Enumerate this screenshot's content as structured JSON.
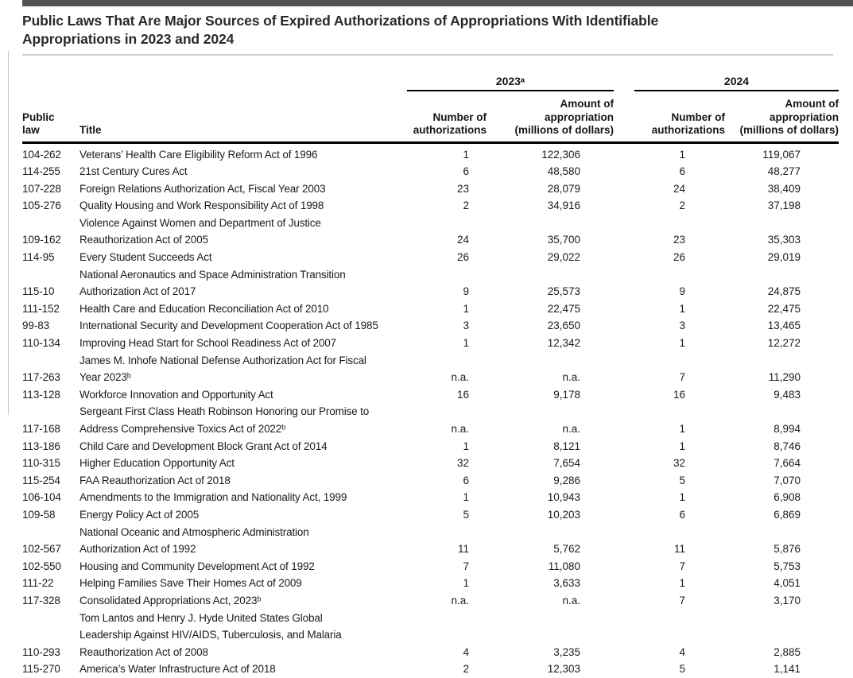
{
  "page": {
    "title": "Public Laws That Are Major Sources of Expired Authorizations of Appropriations With Identifiable\nAppropriations in 2023 and 2024"
  },
  "colors": {
    "top_bar": "#525355",
    "title_text": "#292a2e",
    "rule_black": "#000000",
    "divider_gray": "#cbcdcf"
  },
  "table": {
    "group_headers": {
      "year_2023": "2023ᵃ",
      "year_2024": "2024"
    },
    "column_headers": {
      "public_law": "Public\nlaw",
      "title": "Title",
      "number_of_authorizations_2023": "Number of\nauthorizations",
      "amount_of_appropriation_2023": "Amount of\nappropriation\n(millions of dollars)",
      "number_of_authorizations_2024": "Number of\nauthorizations",
      "amount_of_appropriation_2024": "Amount of\nappropriation\n(millions of dollars)"
    },
    "rows": [
      {
        "law": "104-262",
        "title": "Veterans’ Health Care Eligibility Reform Act of 1996",
        "auth_2023": "1",
        "amt_2023": "122,306",
        "auth_2024": "1",
        "amt_2024": "119,067"
      },
      {
        "law": "114-255",
        "title": "21st Century Cures Act",
        "auth_2023": "6",
        "amt_2023": "48,580",
        "auth_2024": "6",
        "amt_2024": "48,277"
      },
      {
        "law": "107-228",
        "title": "Foreign Relations Authorization Act, Fiscal Year 2003",
        "auth_2023": "23",
        "amt_2023": "28,079",
        "auth_2024": "24",
        "amt_2024": "38,409"
      },
      {
        "law": "105-276",
        "title": "Quality Housing and Work Responsibility Act of 1998",
        "auth_2023": "2",
        "amt_2023": "34,916",
        "auth_2024": "2",
        "amt_2024": "37,198"
      },
      {
        "law": "109-162",
        "title": "Violence Against Women and Department of Justice\nReauthorization Act of 2005",
        "auth_2023": "24",
        "amt_2023": "35,700",
        "auth_2024": "23",
        "amt_2024": "35,303"
      },
      {
        "law": "114-95",
        "title": "Every Student Succeeds Act",
        "auth_2023": "26",
        "amt_2023": "29,022",
        "auth_2024": "26",
        "amt_2024": "29,019"
      },
      {
        "law": "115-10",
        "title": "National Aeronautics and Space Administration Transition\nAuthorization Act of 2017",
        "auth_2023": "9",
        "amt_2023": "25,573",
        "auth_2024": "9",
        "amt_2024": "24,875"
      },
      {
        "law": "111-152",
        "title": "Health Care and Education Reconciliation Act of 2010",
        "auth_2023": "1",
        "amt_2023": "22,475",
        "auth_2024": "1",
        "amt_2024": "22,475"
      },
      {
        "law": "99-83",
        "title": "International Security and Development Cooperation Act of 1985",
        "auth_2023": "3",
        "amt_2023": "23,650",
        "auth_2024": "3",
        "amt_2024": "13,465"
      },
      {
        "law": "110-134",
        "title": "Improving Head Start for School Readiness Act of 2007",
        "auth_2023": "1",
        "amt_2023": "12,342",
        "auth_2024": "1",
        "amt_2024": "12,272"
      },
      {
        "law": "117-263",
        "title": "James M. Inhofe National Defense Authorization Act for Fiscal\nYear 2023ᵇ",
        "auth_2023": "n.a.",
        "amt_2023": "n.a.",
        "auth_2024": "7",
        "amt_2024": "11,290"
      },
      {
        "law": "113-128",
        "title": "Workforce Innovation and Opportunity Act",
        "auth_2023": "16",
        "amt_2023": "9,178",
        "auth_2024": "16",
        "amt_2024": "9,483"
      },
      {
        "law": "117-168",
        "title": "Sergeant First Class Heath Robinson Honoring our Promise to\nAddress Comprehensive Toxics Act of 2022ᵇ",
        "auth_2023": "n.a.",
        "amt_2023": "n.a.",
        "auth_2024": "1",
        "amt_2024": "8,994"
      },
      {
        "law": "113-186",
        "title": "Child Care and Development Block Grant Act of 2014",
        "auth_2023": "1",
        "amt_2023": "8,121",
        "auth_2024": "1",
        "amt_2024": "8,746"
      },
      {
        "law": "110-315",
        "title": "Higher Education Opportunity Act",
        "auth_2023": "32",
        "amt_2023": "7,654",
        "auth_2024": "32",
        "amt_2024": "7,664"
      },
      {
        "law": "115-254",
        "title": "FAA Reauthorization Act of 2018",
        "auth_2023": "6",
        "amt_2023": "9,286",
        "auth_2024": "5",
        "amt_2024": "7,070"
      },
      {
        "law": "106-104",
        "title": "Amendments to the Immigration and Nationality Act, 1999",
        "auth_2023": "1",
        "amt_2023": "10,943",
        "auth_2024": "1",
        "amt_2024": "6,908"
      },
      {
        "law": "109-58",
        "title": "Energy Policy Act of 2005",
        "auth_2023": "5",
        "amt_2023": "10,203",
        "auth_2024": "6",
        "amt_2024": "6,869"
      },
      {
        "law": "102-567",
        "title": "National Oceanic and Atmospheric Administration\nAuthorization Act of 1992",
        "auth_2023": "11",
        "amt_2023": "5,762",
        "auth_2024": "11",
        "amt_2024": "5,876"
      },
      {
        "law": "102-550",
        "title": "Housing and Community Development Act of 1992",
        "auth_2023": "7",
        "amt_2023": "11,080",
        "auth_2024": "7",
        "amt_2024": "5,753"
      },
      {
        "law": "111-22",
        "title": "Helping Families Save Their Homes Act of 2009",
        "auth_2023": "1",
        "amt_2023": "3,633",
        "auth_2024": "1",
        "amt_2024": "4,051"
      },
      {
        "law": "117-328",
        "title": "Consolidated Appropriations Act, 2023ᵇ",
        "auth_2023": "n.a.",
        "amt_2023": "n.a.",
        "auth_2024": "7",
        "amt_2024": "3,170"
      },
      {
        "law": "110-293",
        "title": "Tom Lantos and Henry J. Hyde United States Global\nLeadership Against HIV/AIDS, Tuberculosis, and Malaria\nReauthorization Act of 2008",
        "auth_2023": "4",
        "amt_2023": "3,235",
        "auth_2024": "4",
        "amt_2024": "2,885"
      },
      {
        "law": "115-270",
        "title": "America’s Water Infrastructure Act of 2018",
        "auth_2023": "2",
        "amt_2023": "12,303",
        "auth_2024": "5",
        "amt_2024": "1,141"
      }
    ]
  }
}
